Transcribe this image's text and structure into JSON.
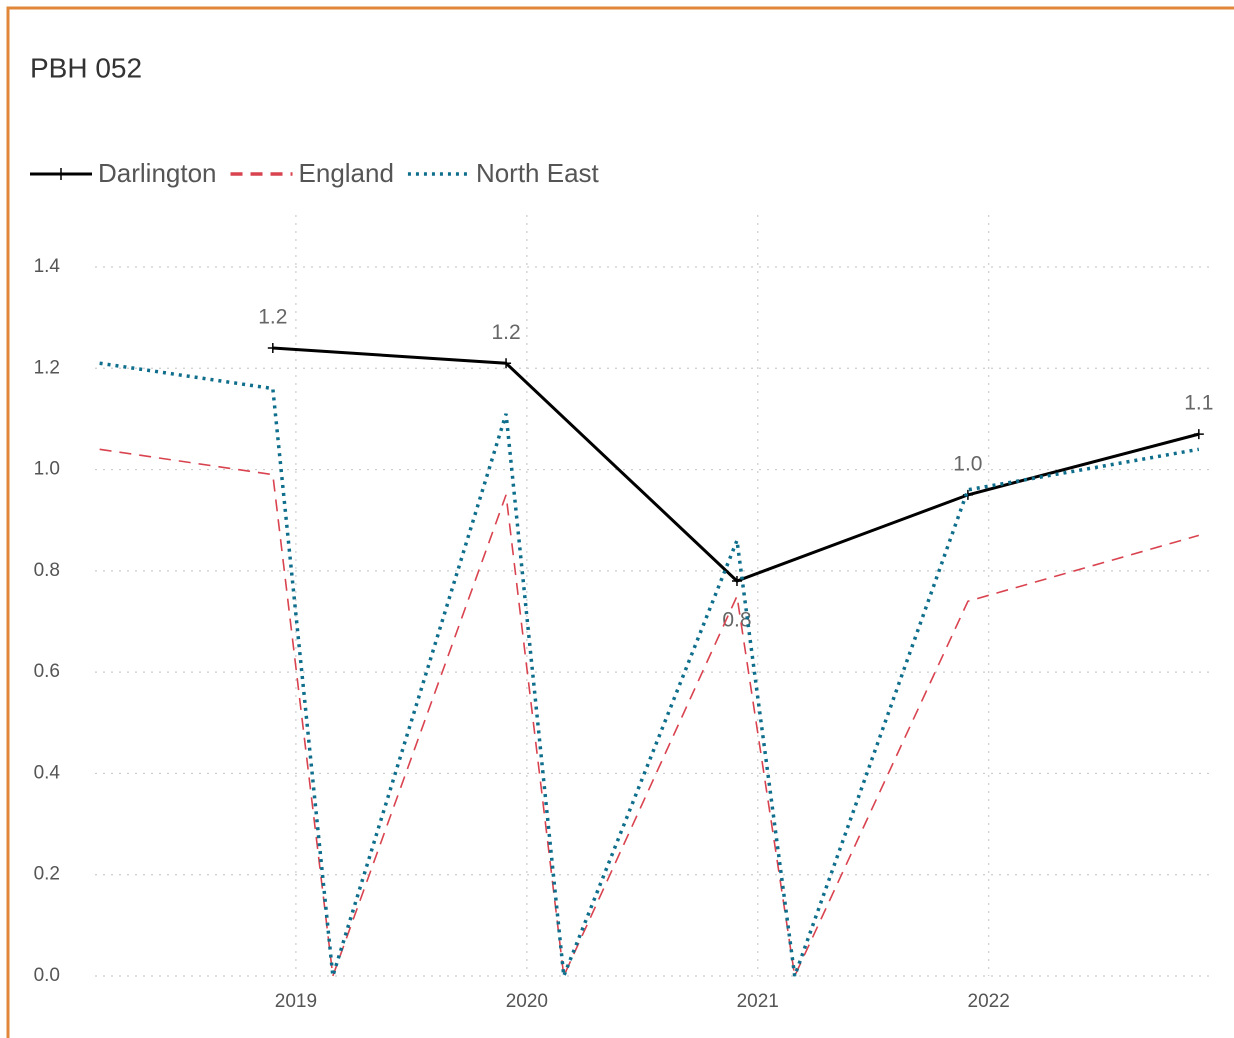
{
  "chart_data": {
    "type": "line",
    "title": "PBH 052",
    "x": [
      2018.15,
      2018.9,
      2019.16,
      2019.91,
      2020.16,
      2020.91,
      2021.16,
      2021.91,
      2022.91
    ],
    "series": [
      {
        "name": "Darlington",
        "color": "#000000",
        "x": [
          2018.9,
          2019.91,
          2020.91,
          2021.91,
          2022.91
        ],
        "values": [
          1.24,
          1.21,
          0.78,
          0.95,
          1.07
        ],
        "value_labels": [
          "1.2",
          "1.2",
          "0.8",
          "1.0",
          "1.1"
        ]
      },
      {
        "name": "England",
        "color": "#d9434f",
        "values": [
          1.04,
          0.99,
          0,
          0.95,
          0,
          0.75,
          0,
          0.74,
          0.87
        ]
      },
      {
        "name": "North East",
        "color": "#0e6e8c",
        "values": [
          1.21,
          1.16,
          0,
          1.11,
          0,
          0.86,
          0,
          0.96,
          1.04
        ]
      }
    ],
    "xlim": [
      2018.13,
      2022.98
    ],
    "xticks": [
      2019,
      2020,
      2021,
      2022
    ],
    "ylim": [
      0,
      1.4
    ],
    "yticks": [
      {
        "value": 0,
        "label": "0.0"
      },
      0.2,
      0.4,
      0.6,
      0.8,
      {
        "value": 1,
        "label": "1.0"
      },
      1.2,
      1.4
    ],
    "grid": true
  }
}
